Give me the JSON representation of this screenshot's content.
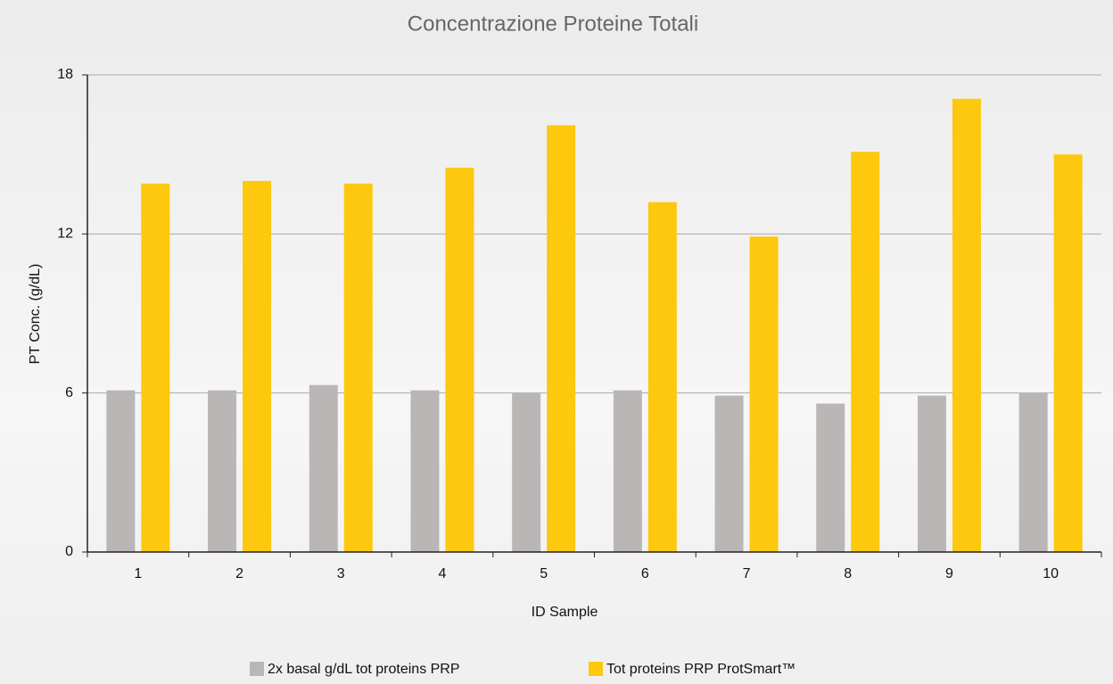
{
  "chart_data": {
    "type": "bar",
    "title": "Concentrazione Proteine Totali",
    "x_label": "ID Sample",
    "y_label": "PT Conc. (g/dL)",
    "categories": [
      "1",
      "2",
      "3",
      "4",
      "5",
      "6",
      "7",
      "8",
      "9",
      "10"
    ],
    "series": [
      {
        "name": "2x basal g/dL tot proteins PRP",
        "color": "#bbb6b6",
        "values": [
          6.1,
          6.1,
          6.3,
          6.1,
          6.0,
          6.1,
          5.9,
          5.6,
          5.9,
          6.0
        ]
      },
      {
        "name": "Tot proteins PRP ProtSmart™",
        "color": "#fdc80e",
        "values": [
          13.9,
          14.0,
          13.9,
          14.5,
          16.1,
          13.2,
          11.9,
          15.1,
          17.1,
          15.0
        ]
      }
    ],
    "ylim": [
      0,
      18
    ],
    "yticks": [
      0,
      6,
      12,
      18
    ],
    "grid": true,
    "legend": "bottom"
  }
}
